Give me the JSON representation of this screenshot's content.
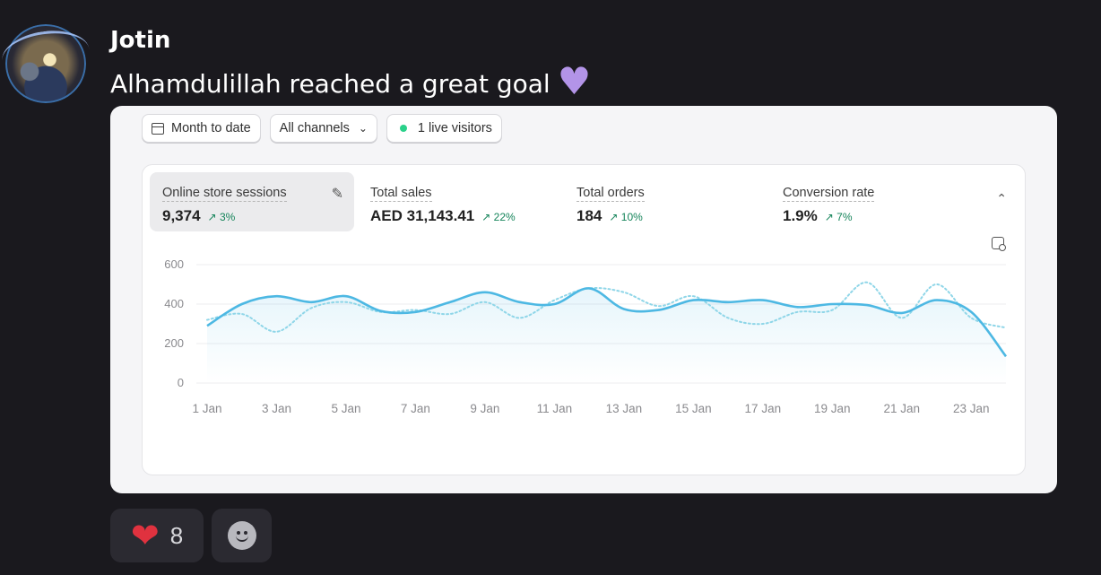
{
  "message": {
    "author": "Jotin",
    "text": "Alhamdulillah reached a great goal",
    "emoji": "purple-heart"
  },
  "dashboard": {
    "filters": {
      "date_range": "Month to date",
      "channels": "All channels",
      "live": "1 live visitors"
    },
    "metrics": [
      {
        "label": "Online store sessions",
        "value": "9,374",
        "change": "3%"
      },
      {
        "label": "Total sales",
        "value": "AED 31,143.41",
        "change": "22%"
      },
      {
        "label": "Total orders",
        "value": "184",
        "change": "10%"
      },
      {
        "label": "Conversion rate",
        "value": "1.9%",
        "change": "7%"
      }
    ],
    "colors": {
      "primary_line": "#4db8e3",
      "comparison_line": "#8fd6e8",
      "positive": "#15845a"
    }
  },
  "chart_data": {
    "type": "line",
    "x": [
      "1 Jan",
      "2 Jan",
      "3 Jan",
      "4 Jan",
      "5 Jan",
      "6 Jan",
      "7 Jan",
      "8 Jan",
      "9 Jan",
      "10 Jan",
      "11 Jan",
      "12 Jan",
      "13 Jan",
      "14 Jan",
      "15 Jan",
      "16 Jan",
      "17 Jan",
      "18 Jan",
      "19 Jan",
      "20 Jan",
      "21 Jan",
      "22 Jan",
      "23 Jan",
      "24 Jan"
    ],
    "x_tick_labels": [
      "1 Jan",
      "3 Jan",
      "5 Jan",
      "7 Jan",
      "9 Jan",
      "11 Jan",
      "13 Jan",
      "15 Jan",
      "17 Jan",
      "19 Jan",
      "21 Jan",
      "23 Jan"
    ],
    "ylim": [
      0,
      600
    ],
    "y_ticks": [
      0,
      200,
      400,
      600
    ],
    "grid": true,
    "series": [
      {
        "style": "solid",
        "values": [
          290,
          400,
          440,
          410,
          440,
          365,
          360,
          410,
          460,
          410,
          400,
          480,
          375,
          370,
          420,
          410,
          420,
          385,
          400,
          395,
          355,
          420,
          360,
          135
        ]
      },
      {
        "style": "dotted",
        "values": [
          320,
          350,
          260,
          380,
          410,
          360,
          370,
          350,
          410,
          330,
          420,
          480,
          460,
          390,
          440,
          330,
          300,
          360,
          370,
          510,
          330,
          500,
          330,
          280
        ]
      }
    ]
  },
  "reactions": [
    {
      "emoji": "red-heart",
      "count": "8"
    }
  ]
}
